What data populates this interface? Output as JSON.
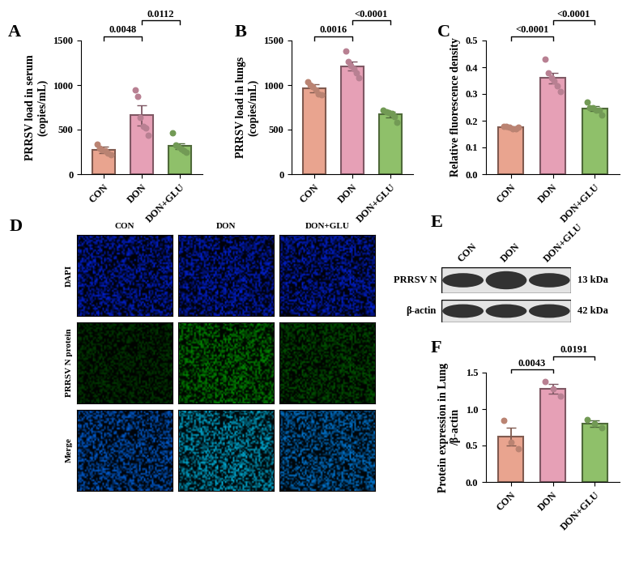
{
  "chart_data": [
    {
      "type": "bar",
      "panel": "A",
      "categories": [
        "CON",
        "DON",
        "DON+GLU"
      ],
      "values": [
        270,
        660,
        315
      ],
      "errors": [
        35,
        115,
        35
      ],
      "points": [
        [
          340,
          290,
          270,
          260,
          240,
          220
        ],
        [
          950,
          870,
          640,
          540,
          520,
          440
        ],
        [
          460,
          330,
          310,
          280,
          260,
          250
        ]
      ],
      "colors": [
        "#e9a48f",
        "#e6a0b6",
        "#8fc06a"
      ],
      "y_label": "PRRSV load in serum\n(copies/mL)",
      "ylim": [
        0,
        1500
      ],
      "yticks": [
        0,
        500,
        1000,
        1500
      ],
      "comparisons": [
        {
          "groups": [
            "CON",
            "DON"
          ],
          "label": "0.0048"
        },
        {
          "groups": [
            "DON",
            "DON+GLU"
          ],
          "label": "0.0112"
        }
      ]
    },
    {
      "type": "bar",
      "panel": "B",
      "categories": [
        "CON",
        "DON",
        "DON+GLU"
      ],
      "values": [
        960,
        1210,
        670
      ],
      "errors": [
        45,
        50,
        30
      ],
      "points": [
        [
          1040,
          1000,
          980,
          950,
          900,
          890
        ],
        [
          1380,
          1260,
          1220,
          1180,
          1140,
          1080
        ],
        [
          720,
          700,
          690,
          680,
          650,
          580
        ]
      ],
      "colors": [
        "#e9a48f",
        "#e6a0b6",
        "#8fc06a"
      ],
      "y_label": "PRRSV load in lungs\n(copies/mL)",
      "ylim": [
        0,
        1500
      ],
      "yticks": [
        0,
        500,
        1000,
        1500
      ],
      "comparisons": [
        {
          "groups": [
            "CON",
            "DON"
          ],
          "label": "0.0016"
        },
        {
          "groups": [
            "DON",
            "DON+GLU"
          ],
          "label": "<0.0001"
        }
      ]
    },
    {
      "type": "bar",
      "panel": "C",
      "categories": [
        "CON",
        "DON",
        "DON+GLU"
      ],
      "values": [
        0.175,
        0.36,
        0.245
      ],
      "errors": [
        0.004,
        0.02,
        0.01
      ],
      "points": [
        [
          0.18,
          0.18,
          0.175,
          0.17,
          0.17,
          0.175
        ],
        [
          0.43,
          0.38,
          0.36,
          0.35,
          0.33,
          0.31
        ],
        [
          0.27,
          0.25,
          0.25,
          0.24,
          0.24,
          0.22
        ]
      ],
      "colors": [
        "#e9a48f",
        "#e6a0b6",
        "#8fc06a"
      ],
      "y_label": "Relative fluorescence density",
      "ylim": [
        0,
        0.5
      ],
      "yticks": [
        {
          "value": 0,
          "label": "0.0"
        },
        0.1,
        0.2,
        0.3,
        0.4,
        0.5
      ],
      "comparisons": [
        {
          "groups": [
            "CON",
            "DON"
          ],
          "label": "<0.0001"
        },
        {
          "groups": [
            "DON",
            "DON+GLU"
          ],
          "label": "<0.0001"
        }
      ]
    },
    {
      "type": "bar",
      "panel": "F",
      "categories": [
        "CON",
        "DON",
        "DON+GLU"
      ],
      "values": [
        0.62,
        1.28,
        0.8
      ],
      "errors": [
        0.12,
        0.07,
        0.04
      ],
      "points": [
        [
          0.85,
          0.55,
          0.46
        ],
        [
          1.38,
          1.28,
          1.18
        ],
        [
          0.86,
          0.8,
          0.74
        ]
      ],
      "colors": [
        "#e9a48f",
        "#e6a0b6",
        "#8fc06a"
      ],
      "y_label": "Protein expression in Lung\n/β-actin",
      "ylim": [
        0,
        1.5
      ],
      "yticks": [
        {
          "value": 0,
          "label": "0.0"
        },
        0.5,
        {
          "value": 1,
          "label": "1.0"
        },
        1.5
      ],
      "comparisons": [
        {
          "groups": [
            "CON",
            "DON"
          ],
          "label": "0.0043"
        },
        {
          "groups": [
            "DON",
            "DON+GLU"
          ],
          "label": "0.0191"
        }
      ]
    }
  ],
  "immunofluorescence": {
    "panel": "D",
    "columns": [
      "CON",
      "DON",
      "DON+GLU"
    ],
    "rows": [
      "DAPI",
      "PRRSV N protein",
      "Merge"
    ]
  },
  "western_blot": {
    "panel": "E",
    "columns": [
      "CON",
      "DON",
      "DON+GLU"
    ],
    "bands": [
      {
        "name": "PRRSV N",
        "size": "13 kDa"
      },
      {
        "name": "β-actin",
        "size": "42 kDa"
      }
    ]
  }
}
